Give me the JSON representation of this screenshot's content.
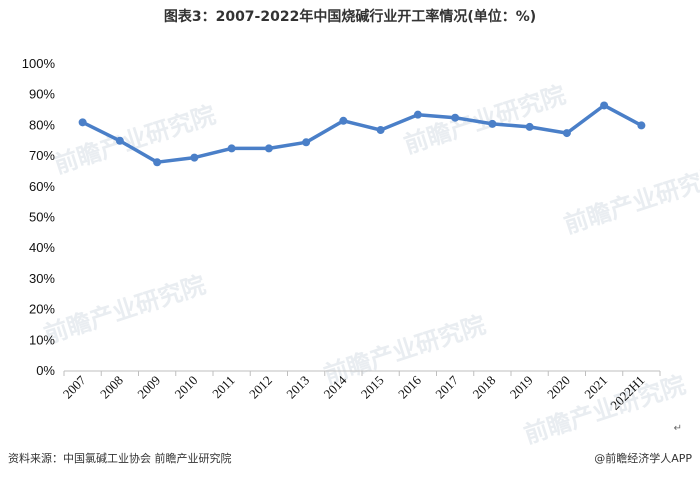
{
  "chart_data": {
    "type": "line",
    "title": "图表3：2007-2022年中国烧碱行业开工率情况(单位：%)",
    "categories": [
      "2007",
      "2008",
      "2009",
      "2010",
      "2011",
      "2012",
      "2013",
      "2014",
      "2015",
      "2016",
      "2017",
      "2018",
      "2019",
      "2020",
      "2021",
      "2022H1"
    ],
    "series": [
      {
        "values": [
          81,
          75,
          68,
          69.5,
          72.5,
          72.5,
          74.5,
          81.5,
          78.5,
          83.5,
          82.5,
          80.5,
          79.5,
          77.5,
          86.5,
          80
        ]
      }
    ],
    "ylim": [
      0,
      100
    ],
    "yticks": [
      0,
      10,
      20,
      30,
      40,
      50,
      60,
      70,
      80,
      90,
      100
    ],
    "ytick_suffix": "%",
    "grid": false,
    "legend": "none",
    "line_color": "#4a7fc8"
  },
  "footer": {
    "source": "资料来源：中国氯碱工业协会 前瞻产业研究院",
    "brand": "@前瞻经济学人APP"
  },
  "marks": {
    "return": "↵"
  },
  "watermark": {
    "text": "前瞻产业研究院"
  }
}
